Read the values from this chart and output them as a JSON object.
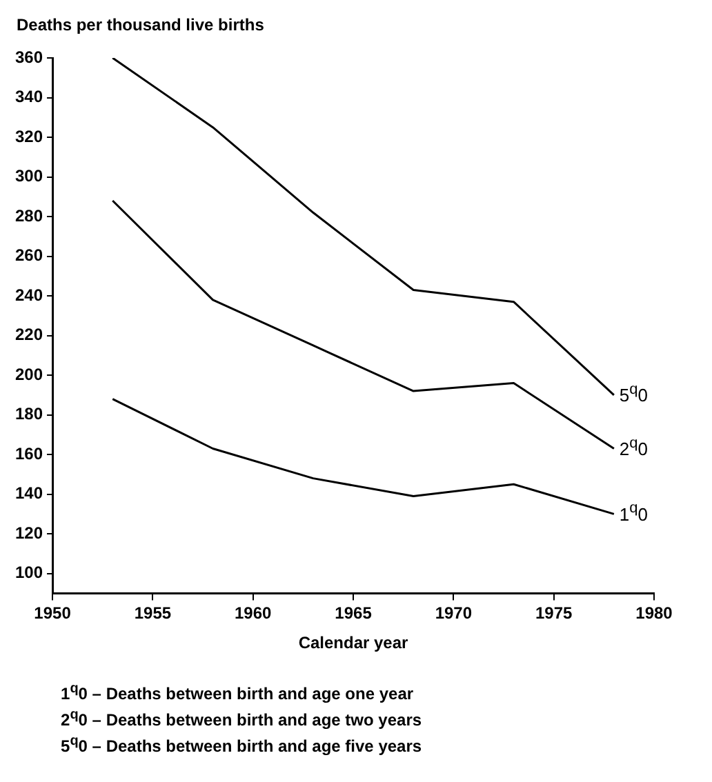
{
  "chart_data": {
    "type": "line",
    "ylabel": "Deaths per thousand live births",
    "xlabel": "Calendar year",
    "x": [
      1953,
      1958,
      1963,
      1968,
      1973,
      1978
    ],
    "series": [
      {
        "name": "5$^{q}$0",
        "color": "#000000",
        "values": [
          360,
          325,
          282,
          243,
          237,
          190
        ]
      },
      {
        "name": "2$^{q}$0",
        "color": "#000000",
        "values": [
          288,
          238,
          215,
          192,
          196,
          163
        ]
      },
      {
        "name": "1$^{q}$0",
        "color": "#000000",
        "values": [
          188,
          163,
          148,
          139,
          145,
          130
        ]
      }
    ],
    "xlim": [
      1950,
      1980
    ],
    "xticks": [
      1950,
      1955,
      1960,
      1965,
      1970,
      1975,
      1980
    ],
    "ylim": [
      90,
      360
    ],
    "yticks": [
      100,
      120,
      140,
      160,
      180,
      200,
      220,
      240,
      260,
      280,
      300,
      320,
      340,
      360
    ],
    "grid": false,
    "legend": false,
    "marker": "none",
    "line_style": "solid",
    "annotations": [
      "1$^{q}$0 – Deaths between birth and age one year",
      "2$^{q}$0 – Deaths between birth and age two years",
      "5$^{q}$0 – Deaths between birth and age five years"
    ]
  }
}
